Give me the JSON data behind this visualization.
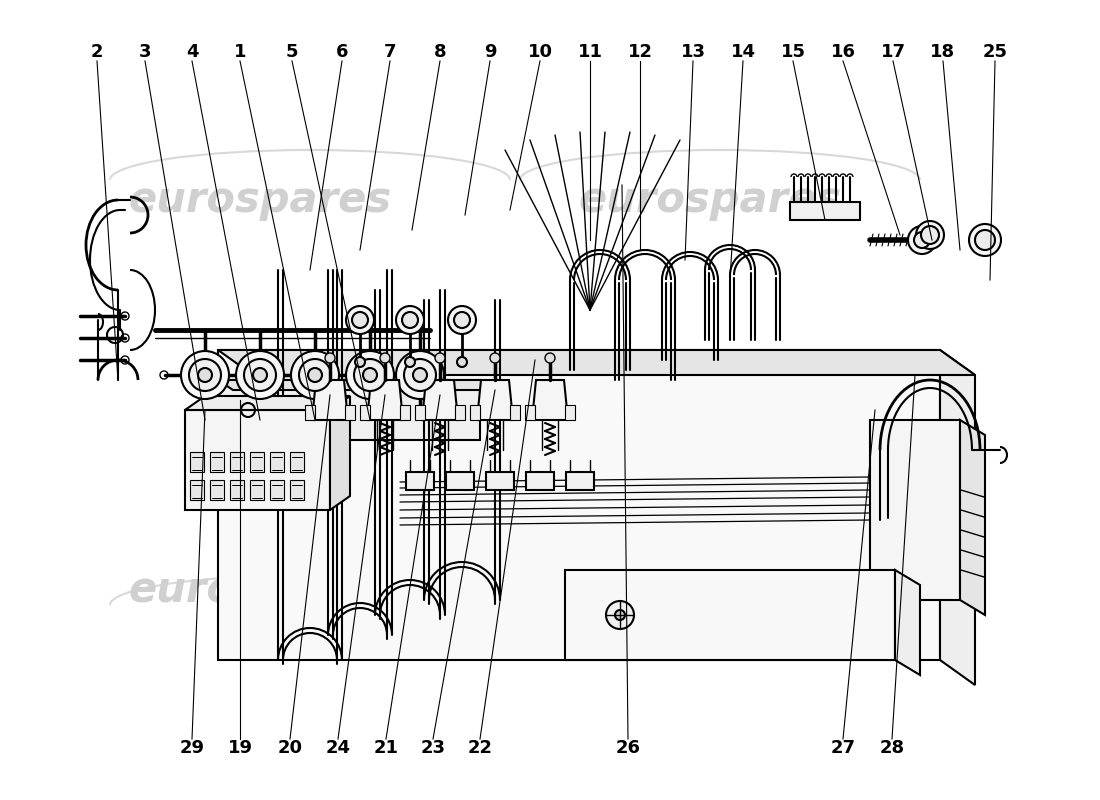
{
  "background_color": "#ffffff",
  "line_color": "#000000",
  "label_fontsize": 13,
  "label_fontweight": "bold",
  "watermark_text": "eurospares",
  "watermark_color": "#d0d0d0",
  "top_labels": [
    [
      "2",
      97,
      52
    ],
    [
      "3",
      145,
      52
    ],
    [
      "4",
      192,
      52
    ],
    [
      "1",
      240,
      52
    ],
    [
      "5",
      292,
      52
    ],
    [
      "6",
      342,
      52
    ],
    [
      "7",
      390,
      52
    ],
    [
      "8",
      440,
      52
    ],
    [
      "9",
      490,
      52
    ],
    [
      "10",
      540,
      52
    ],
    [
      "11",
      590,
      52
    ],
    [
      "12",
      640,
      52
    ],
    [
      "13",
      693,
      52
    ],
    [
      "14",
      743,
      52
    ],
    [
      "15",
      793,
      52
    ],
    [
      "16",
      843,
      52
    ],
    [
      "17",
      893,
      52
    ],
    [
      "18",
      943,
      52
    ],
    [
      "25",
      995,
      52
    ]
  ],
  "bottom_labels": [
    [
      "29",
      192,
      748
    ],
    [
      "19",
      240,
      748
    ],
    [
      "20",
      290,
      748
    ],
    [
      "24",
      338,
      748
    ],
    [
      "21",
      386,
      748
    ],
    [
      "23",
      433,
      748
    ],
    [
      "22",
      480,
      748
    ],
    [
      "26",
      628,
      748
    ],
    [
      "27",
      843,
      748
    ],
    [
      "28",
      892,
      748
    ]
  ]
}
